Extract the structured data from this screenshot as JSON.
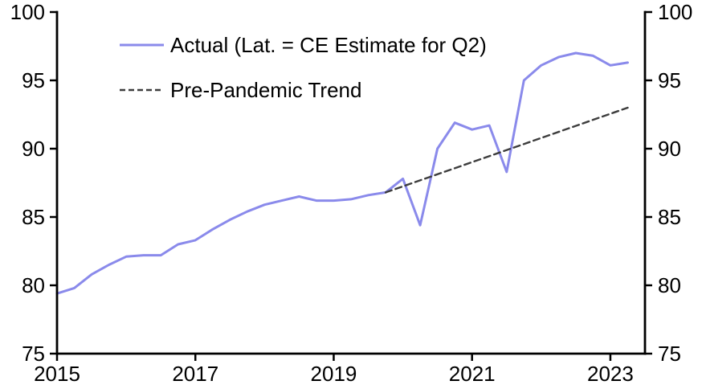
{
  "figure": {
    "background": "#ffffff",
    "axis_color": "#000000",
    "text_color": "#000000"
  },
  "chart_data": {
    "type": "line",
    "title": "",
    "xlabel": "",
    "ylabel": "",
    "xlim": [
      2015,
      2023.5
    ],
    "ylim": [
      75,
      100
    ],
    "xticks": [
      2015,
      2017,
      2019,
      2021,
      2023
    ],
    "yticks": [
      75,
      80,
      85,
      90,
      95,
      100
    ],
    "y_axis_sides": [
      "left",
      "right"
    ],
    "grid": false,
    "legend_position": "top-left",
    "series": [
      {
        "name": "Actual (Lat. = CE Estimate for Q2)",
        "color": "#8a8aeb",
        "style": "solid",
        "x": [
          2015.0,
          2015.25,
          2015.5,
          2015.75,
          2016.0,
          2016.25,
          2016.5,
          2016.75,
          2017.0,
          2017.25,
          2017.5,
          2017.75,
          2018.0,
          2018.25,
          2018.5,
          2018.75,
          2019.0,
          2019.25,
          2019.5,
          2019.75,
          2020.0,
          2020.25,
          2020.5,
          2020.75,
          2021.0,
          2021.25,
          2021.5,
          2021.75,
          2022.0,
          2022.25,
          2022.5,
          2022.75,
          2023.0,
          2023.25
        ],
        "values": [
          79.4,
          79.8,
          80.8,
          81.5,
          82.1,
          82.2,
          82.2,
          83.0,
          83.3,
          84.1,
          84.8,
          85.4,
          85.9,
          86.2,
          86.5,
          86.2,
          86.2,
          86.3,
          86.6,
          86.8,
          87.8,
          84.4,
          90.0,
          91.9,
          91.4,
          91.7,
          88.3,
          95.0,
          96.1,
          96.7,
          97.0,
          96.8,
          96.1,
          96.3
        ]
      },
      {
        "name": "Pre-Pandemic Trend",
        "color": "#3d3d3d",
        "style": "dashed",
        "x": [
          2019.75,
          2023.25
        ],
        "values": [
          86.8,
          93.0
        ]
      }
    ]
  }
}
